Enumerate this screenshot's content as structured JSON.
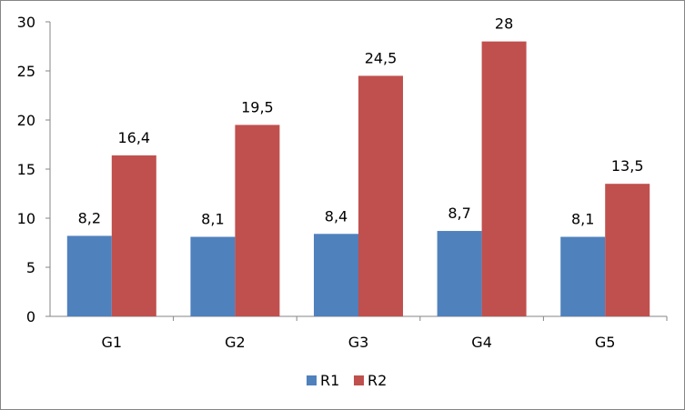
{
  "chart_data": {
    "type": "bar",
    "title": "",
    "xlabel": "",
    "ylabel": "",
    "categories": [
      "G1",
      "G2",
      "G3",
      "G4",
      "G5"
    ],
    "series": [
      {
        "name": "R1",
        "color": "#4F81BD",
        "values": [
          8.2,
          8.1,
          8.4,
          8.7,
          8.1
        ],
        "labels": [
          "8,2",
          "8,1",
          "8,4",
          "8,7",
          "8,1"
        ]
      },
      {
        "name": "R2",
        "color": "#C0504D",
        "values": [
          16.4,
          19.5,
          24.5,
          28,
          13.5
        ],
        "labels": [
          "16,4",
          "19,5",
          "24,5",
          "28",
          "13,5"
        ]
      }
    ],
    "ylim": [
      0,
      30
    ],
    "yticks": [
      0,
      5,
      10,
      15,
      20,
      25,
      30
    ],
    "grid": false,
    "legend_position": "bottom"
  }
}
